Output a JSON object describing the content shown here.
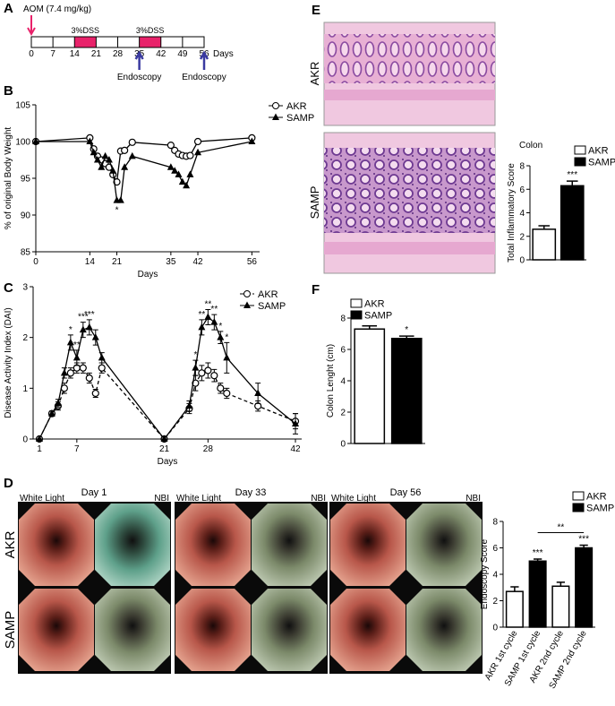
{
  "panels": [
    "A",
    "B",
    "C",
    "D",
    "E",
    "F"
  ],
  "timeline": {
    "annotation": "AOM (7.4 mg/kg)",
    "ticks": [
      0,
      7,
      14,
      21,
      28,
      35,
      42,
      49,
      56
    ],
    "unit": "Days",
    "treatments": [
      {
        "label": "3%DSS",
        "start": 14,
        "end": 21
      },
      {
        "label": "3%DSS",
        "start": 35,
        "end": 42
      }
    ],
    "procedures": [
      {
        "label": "Endoscopy",
        "day": 35
      },
      {
        "label": "Endoscopy",
        "day": 56
      }
    ]
  },
  "endoscopy_images": {
    "days": [
      "Day 1",
      "Day 33",
      "Day 56"
    ],
    "modes": [
      "White Light",
      "NBI"
    ],
    "rows": [
      "AKR",
      "SAMP"
    ]
  },
  "histology_images": {
    "rows": [
      "AKR",
      "SAMP"
    ]
  },
  "chart_data": [
    {
      "type": "line",
      "x_label": "Days",
      "y_label": "% of original Body Weight",
      "x": [
        0,
        14,
        15,
        16,
        17,
        18,
        19,
        20,
        21,
        22,
        23,
        25,
        35,
        36,
        37,
        38,
        39,
        40,
        42,
        56
      ],
      "xlim": [
        0,
        58
      ],
      "xticks": [
        0,
        14,
        21,
        35,
        42,
        56
      ],
      "ylim": [
        85,
        105
      ],
      "yticks": [
        85,
        90,
        95,
        100,
        105
      ],
      "significance_side": "below",
      "series": [
        {
          "name": "AKR",
          "color": "#000000",
          "marker": "circle",
          "line_style": "solid",
          "values": [
            100,
            100.5,
            99,
            98,
            97.5,
            97,
            96.5,
            95.5,
            94.5,
            98.7,
            98.8,
            99.9,
            99.5,
            98.8,
            98.3,
            98.1,
            98,
            98.1,
            100,
            100.5
          ]
        },
        {
          "name": "SAMP",
          "color": "#000000",
          "marker": "triangle",
          "line_style": "solid",
          "values": [
            100,
            100,
            98.5,
            97.5,
            96.5,
            98,
            97.5,
            96,
            92,
            92,
            96.5,
            98,
            96.5,
            96,
            95.5,
            94.5,
            94,
            95.5,
            98.5,
            100
          ],
          "significance": [
            null,
            null,
            null,
            null,
            null,
            null,
            null,
            null,
            "*",
            null,
            null,
            null,
            null,
            null,
            null,
            null,
            null,
            null,
            null,
            null
          ]
        }
      ]
    },
    {
      "type": "line",
      "x_label": "Days",
      "y_label": "Disease Activity Index (DAI)",
      "x": [
        1,
        3,
        4,
        5,
        6,
        7,
        8,
        9,
        10,
        11,
        21,
        25,
        26,
        27,
        28,
        29,
        30,
        31,
        36,
        42
      ],
      "xlim": [
        0,
        43
      ],
      "xticks": [
        1,
        7,
        21,
        28,
        42
      ],
      "ylim": [
        0,
        3
      ],
      "yticks": [
        0,
        1,
        2,
        3
      ],
      "significance_side": "above",
      "series": [
        {
          "name": "AKR",
          "color": "#000000",
          "marker": "circle",
          "line_style": "dashed",
          "values": [
            0,
            0.5,
            0.65,
            1.0,
            1.3,
            1.4,
            1.4,
            1.2,
            0.9,
            1.4,
            0,
            0.6,
            1.1,
            1.3,
            1.35,
            1.25,
            1.0,
            0.9,
            0.65,
            0.35
          ],
          "errors": [
            0,
            0.05,
            0.08,
            0.1,
            0.1,
            0.1,
            0.1,
            0.1,
            0.08,
            0.1,
            0,
            0.1,
            0.15,
            0.15,
            0.15,
            0.12,
            0.1,
            0.1,
            0.1,
            0.15
          ]
        },
        {
          "name": "SAMP",
          "color": "#000000",
          "marker": "triangle",
          "line_style": "solid",
          "values": [
            0,
            0.5,
            0.7,
            1.3,
            1.9,
            1.6,
            2.15,
            2.2,
            2.0,
            1.6,
            0,
            0.65,
            1.4,
            2.2,
            2.4,
            2.3,
            2.0,
            1.6,
            0.9,
            0.3
          ],
          "errors": [
            0,
            0.05,
            0.08,
            0.1,
            0.15,
            0.15,
            0.15,
            0.15,
            0.15,
            0.1,
            0,
            0.1,
            0.15,
            0.15,
            0.15,
            0.15,
            0.12,
            0.3,
            0.2,
            0.2
          ],
          "significance": [
            null,
            null,
            null,
            null,
            "*",
            "**",
            "***",
            "***",
            null,
            null,
            null,
            null,
            "*",
            "**",
            "**",
            "**",
            "*",
            "*",
            null,
            null
          ]
        }
      ]
    },
    {
      "type": "bar",
      "y_label": "Endoscopy Score",
      "categories": [
        "AKR 1st cycle",
        "SAMP 1st cycle",
        "AKR 2nd cycle",
        "SAMP 2nd cycle"
      ],
      "values": [
        2.7,
        5.0,
        3.1,
        6.0
      ],
      "errors": [
        0.35,
        0.15,
        0.3,
        0.2
      ],
      "colors": [
        "#ffffff",
        "#000000",
        "#ffffff",
        "#000000"
      ],
      "significance": [
        null,
        "***",
        null,
        "***"
      ],
      "comparisons": [
        {
          "categories": [
            "SAMP 1st cycle",
            "SAMP 2nd cycle"
          ],
          "label": "**"
        }
      ],
      "ylim": [
        0,
        8
      ],
      "yticks": [
        0,
        2,
        4,
        6,
        8
      ],
      "legend": [
        {
          "name": "AKR",
          "color": "#ffffff"
        },
        {
          "name": "SAMP",
          "color": "#000000"
        }
      ]
    },
    {
      "type": "bar",
      "title": "Colon",
      "y_label": "Total Inflammatory Score",
      "categories": [
        null,
        null
      ],
      "values": [
        2.6,
        6.3
      ],
      "errors": [
        0.3,
        0.4
      ],
      "colors": [
        "#ffffff",
        "#000000"
      ],
      "significance": [
        null,
        "***"
      ],
      "ylim": [
        0,
        8
      ],
      "yticks": [
        0,
        2,
        4,
        6,
        8
      ],
      "legend": [
        {
          "name": "AKR",
          "color": "#ffffff"
        },
        {
          "name": "SAMP",
          "color": "#000000"
        }
      ]
    },
    {
      "type": "bar",
      "y_label": "Colon Lenght (cm)",
      "categories": [
        null,
        null
      ],
      "values": [
        7.3,
        6.7
      ],
      "errors": [
        0.2,
        0.15
      ],
      "colors": [
        "#ffffff",
        "#000000"
      ],
      "significance": [
        null,
        "*"
      ],
      "ylim": [
        0,
        8
      ],
      "yticks": [
        0,
        2,
        4,
        6,
        8
      ],
      "legend": [
        {
          "name": "AKR",
          "color": "#ffffff"
        },
        {
          "name": "SAMP",
          "color": "#000000"
        }
      ]
    }
  ]
}
